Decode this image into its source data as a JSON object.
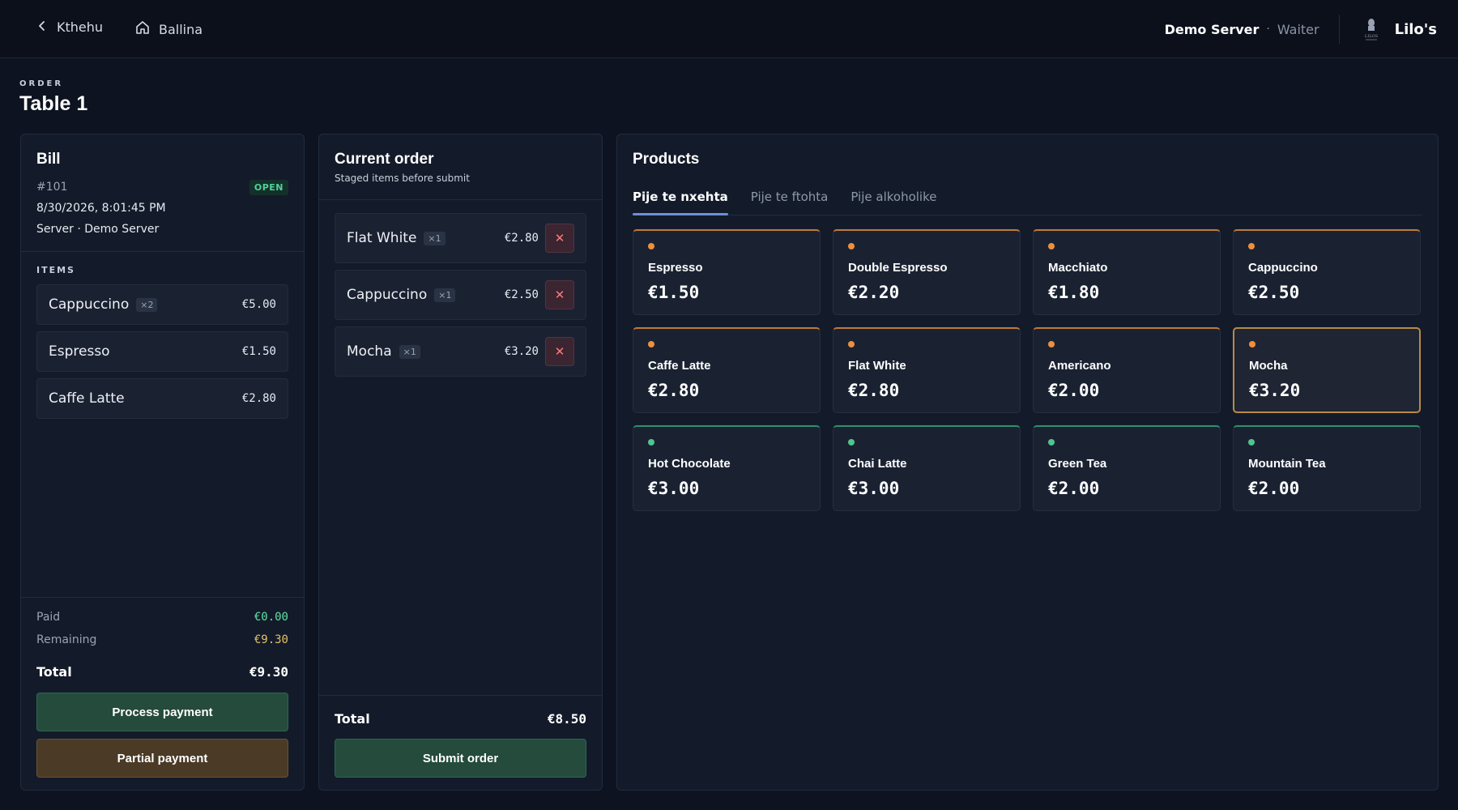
{
  "topbar": {
    "back_label": "Kthehu",
    "home_label": "Ballina",
    "server_name": "Demo Server",
    "separator": "·",
    "role": "Waiter",
    "brand_name": "Lilo's",
    "logo_text": "LILOS"
  },
  "page": {
    "eyebrow": "ORDER",
    "title": "Table 1"
  },
  "bill": {
    "title": "Bill",
    "number": "#101",
    "status": "OPEN",
    "datetime": "8/30/2026, 8:01:45 PM",
    "server": "Server · Demo Server",
    "items_label": "ITEMS",
    "items": [
      {
        "name": "Cappuccino",
        "qty": "×2",
        "price": "€5.00"
      },
      {
        "name": "Espresso",
        "qty": "",
        "price": "€1.50"
      },
      {
        "name": "Caffe Latte",
        "qty": "",
        "price": "€2.80"
      }
    ],
    "paid_label": "Paid",
    "paid_value": "€0.00",
    "remaining_label": "Remaining",
    "remaining_value": "€9.30",
    "total_label": "Total",
    "total_value": "€9.30",
    "process_payment_label": "Process payment",
    "partial_payment_label": "Partial payment"
  },
  "current_order": {
    "title": "Current order",
    "subtitle": "Staged items before submit",
    "items": [
      {
        "name": "Flat White",
        "qty": "×1",
        "price": "€2.80"
      },
      {
        "name": "Cappuccino",
        "qty": "×1",
        "price": "€2.50"
      },
      {
        "name": "Mocha",
        "qty": "×1",
        "price": "€3.20"
      }
    ],
    "remove_glyph": "✕",
    "total_label": "Total",
    "total_value": "€8.50",
    "submit_label": "Submit order"
  },
  "products": {
    "title": "Products",
    "tabs": [
      {
        "label": "Pije te nxehta",
        "active": true
      },
      {
        "label": "Pije te ftohta",
        "active": false
      },
      {
        "label": "Pije alkoholike",
        "active": false
      }
    ],
    "items": [
      {
        "name": "Espresso",
        "price": "€1.50",
        "accent": "orange",
        "selected": false
      },
      {
        "name": "Double Espresso",
        "price": "€2.20",
        "accent": "orange",
        "selected": false
      },
      {
        "name": "Macchiato",
        "price": "€1.80",
        "accent": "orange",
        "selected": false
      },
      {
        "name": "Cappuccino",
        "price": "€2.50",
        "accent": "orange",
        "selected": false
      },
      {
        "name": "Caffe Latte",
        "price": "€2.80",
        "accent": "orange",
        "selected": false
      },
      {
        "name": "Flat White",
        "price": "€2.80",
        "accent": "orange",
        "selected": false
      },
      {
        "name": "Americano",
        "price": "€2.00",
        "accent": "orange",
        "selected": false
      },
      {
        "name": "Mocha",
        "price": "€3.20",
        "accent": "orange",
        "selected": true
      },
      {
        "name": "Hot Chocolate",
        "price": "€3.00",
        "accent": "green",
        "selected": false
      },
      {
        "name": "Chai Latte",
        "price": "€3.00",
        "accent": "green",
        "selected": false
      },
      {
        "name": "Green Tea",
        "price": "€2.00",
        "accent": "green",
        "selected": false
      },
      {
        "name": "Mountain Tea",
        "price": "€2.00",
        "accent": "green",
        "selected": false
      }
    ]
  },
  "colors": {
    "background": "#0d1320",
    "panel": "#131b2a",
    "accent_orange": "#ef8f3c",
    "accent_green": "#4cc68f",
    "paid": "#5fe0a4",
    "remaining": "#e5c06a",
    "tab_underline": "#6c8fd6"
  },
  "icons": {
    "back": "chevron-left-icon",
    "home": "home-icon",
    "brand": "brand-logo-icon",
    "remove": "close-icon",
    "product_dot": "status-dot-icon"
  }
}
